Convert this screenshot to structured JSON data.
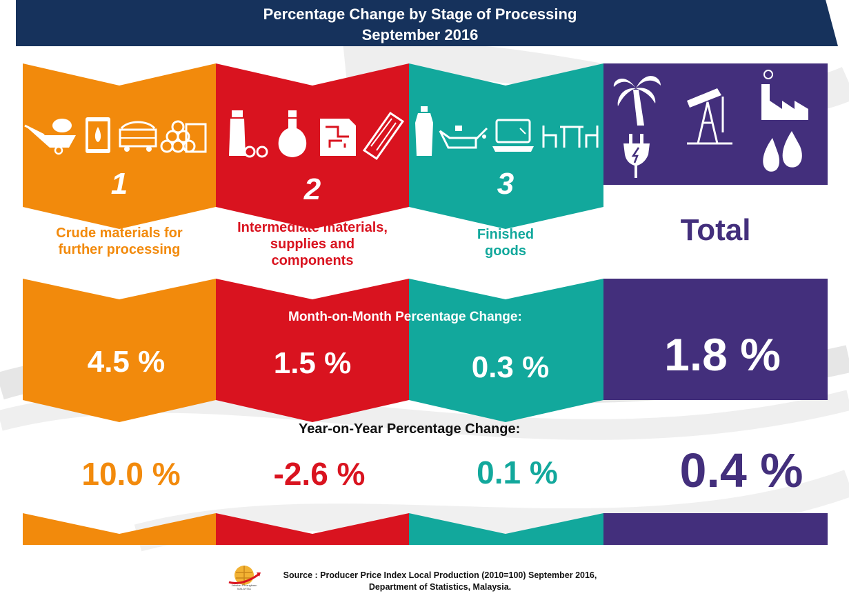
{
  "title": {
    "line1": "Percentage Change by Stage of Processing",
    "line2": "September 2016"
  },
  "colors": {
    "crude": "#f28a0c",
    "intermediate": "#d9131f",
    "finished": "#12a89c",
    "total": "#432f7c",
    "banner": "#16325c"
  },
  "stages": {
    "crude": {
      "number": "1",
      "label_line1": "Crude materials for",
      "label_line2": "further processing",
      "mom": "4.5 %",
      "yoy": "10.0 %"
    },
    "intermediate": {
      "number": "2",
      "label_line1": "Intermediate materials,",
      "label_line2": "supplies and",
      "label_line3": "components",
      "mom": "1.5 %",
      "yoy": "-2.6 %"
    },
    "finished": {
      "number": "3",
      "label_line1": "Finished",
      "label_line2": "goods",
      "mom": "0.3 %",
      "yoy": "0.1 %"
    },
    "total": {
      "label": "Total",
      "mom": "1.8 %",
      "yoy": "0.4 %"
    }
  },
  "headings": {
    "mom": "Month-on-Month Percentage Change:",
    "yoy": "Year-on-Year Percentage Change:"
  },
  "source": {
    "line1": "Source : Producer Price Index Local Production (2010=100) September 2016,",
    "line2": "Department of Statistics, Malaysia."
  },
  "logo_text": "Jabatan Perangkaan MALAYSIA",
  "icons": {
    "crude": [
      "wheelbarrow-icon",
      "oil-barrel-icon",
      "mine-cart-icon",
      "logs-icon"
    ],
    "intermediate": [
      "bottle-icon",
      "flask-icon",
      "circuit-board-icon",
      "wood-plank-icon"
    ],
    "finished": [
      "oil-bottle-icon",
      "oil-can-icon",
      "laptop-icon",
      "furniture-icon"
    ],
    "total": [
      "palm-tree-icon",
      "oil-pump-icon",
      "factory-icon",
      "electric-plug-icon",
      "oil-drops-icon"
    ]
  }
}
